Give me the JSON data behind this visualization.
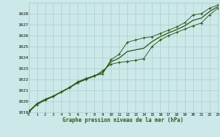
{
  "title": "Graphe pression niveau de la mer (hPa)",
  "bg_color": "#cce8e8",
  "grid_color": "#aacccc",
  "line_color": "#2d5a1b",
  "x_values": [
    0,
    1,
    2,
    3,
    4,
    5,
    6,
    7,
    8,
    9,
    10,
    11,
    12,
    13,
    14,
    15,
    16,
    17,
    18,
    19,
    20,
    21,
    22,
    23
  ],
  "series1": [
    1018.1,
    1018.8,
    1019.2,
    1019.5,
    1019.9,
    1020.3,
    1020.8,
    1021.1,
    1021.35,
    1021.5,
    1022.8,
    1023.3,
    1024.4,
    1024.6,
    1024.8,
    1024.9,
    1025.2,
    1025.5,
    1025.8,
    1026.2,
    1026.9,
    1027.0,
    1027.5,
    1027.8
  ],
  "series2": [
    1018.05,
    1018.7,
    1019.1,
    1019.45,
    1019.85,
    1020.25,
    1020.7,
    1021.0,
    1021.3,
    1021.8,
    1022.4,
    1022.55,
    1022.65,
    1022.75,
    1022.9,
    1024.0,
    1024.6,
    1025.0,
    1025.3,
    1025.6,
    1025.9,
    1026.15,
    1026.9,
    1027.5
  ],
  "series3": [
    1018.0,
    1018.75,
    1019.15,
    1019.45,
    1019.87,
    1020.27,
    1020.75,
    1021.05,
    1021.32,
    1021.65,
    1022.6,
    1022.95,
    1023.55,
    1023.7,
    1023.85,
    1024.45,
    1024.9,
    1025.25,
    1025.55,
    1025.9,
    1026.4,
    1026.6,
    1027.2,
    1027.65
  ],
  "ylim_min": 1018,
  "ylim_max": 1028,
  "xlim_min": 0,
  "xlim_max": 23
}
